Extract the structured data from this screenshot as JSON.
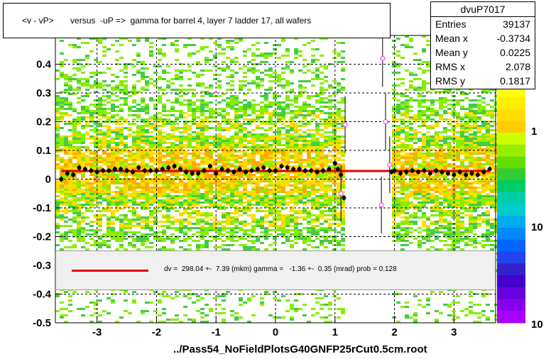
{
  "title": "<v - vP>       versus  -uP =>  gamma for barrel 4, layer 7 ladder 17, all wafers",
  "stats": {
    "name": "dvuP7017",
    "rows": [
      {
        "label": "Entries",
        "value": "39137"
      },
      {
        "label": "Mean x",
        "value": "-0.3734"
      },
      {
        "label": "Mean y",
        "value": "0.0225"
      },
      {
        "label": "RMS x",
        "value": "2.078"
      },
      {
        "label": "RMS y",
        "value": "0.1817"
      }
    ]
  },
  "fit_text": "dv =  298.04 +-  7.39 (mkm) gamma =   -1.36 +-  0.35 (mrad) prob = 0.128",
  "file_label": "../Pass54_NoFieldPlotsG40GNFP25rCut0.5cm.root",
  "colors": {
    "fit_line": "#e00000",
    "profile_points": "#000000",
    "open_markers": "#ff44ff",
    "heatmap_dense": "#ffdd00",
    "heatmap_mid": "#88ee00",
    "heatmap_sparse": "#44cc44"
  },
  "chart_data": {
    "type": "heatmap",
    "xlim": [
      -3.7,
      3.7
    ],
    "ylim": [
      -0.5,
      0.5
    ],
    "xticks": [
      "-3",
      "-2",
      "-1",
      "0",
      "1",
      "2",
      "3"
    ],
    "yticks": [
      "-0.5",
      "-0.4",
      "-0.3",
      "-0.2",
      "-0.1",
      "0",
      "0.1",
      "0.2",
      "0.3",
      "0.4"
    ],
    "colorbar_ticks": [
      "1",
      "10",
      "10"
    ],
    "grid": true,
    "empty_x_band": [
      1.2,
      1.95
    ],
    "fit_line": {
      "x": [
        -3.6,
        3.6
      ],
      "y": [
        0.0285,
        0.0285
      ]
    },
    "profile": {
      "x": [
        -3.6,
        -3.5,
        -3.4,
        -3.3,
        -3.2,
        -3.1,
        -3.0,
        -2.9,
        -2.8,
        -2.7,
        -2.6,
        -2.5,
        -2.4,
        -2.3,
        -2.2,
        -2.1,
        -2.0,
        -1.9,
        -1.8,
        -1.7,
        -1.6,
        -1.5,
        -1.4,
        -1.3,
        -1.2,
        -1.1,
        -1.0,
        -0.9,
        -0.8,
        -0.7,
        -0.6,
        -0.5,
        -0.4,
        -0.3,
        -0.2,
        -0.1,
        0.0,
        0.1,
        0.2,
        0.3,
        0.4,
        0.5,
        0.6,
        0.7,
        0.8,
        0.9,
        1.0,
        1.05,
        1.1,
        1.15,
        1.95,
        2.0,
        2.1,
        2.2,
        2.3,
        2.4,
        2.5,
        2.6,
        2.7,
        2.8,
        2.9,
        3.0,
        3.1,
        3.2,
        3.3,
        3.4,
        3.5,
        3.6
      ],
      "y": [
        0.0,
        0.02,
        0.015,
        0.04,
        0.035,
        0.03,
        0.025,
        0.03,
        0.03,
        0.035,
        0.035,
        0.03,
        0.025,
        0.04,
        0.03,
        0.03,
        0.03,
        0.035,
        0.04,
        0.045,
        0.035,
        0.025,
        0.02,
        0.02,
        0.03,
        0.045,
        0.02,
        0.035,
        0.03,
        0.025,
        0.035,
        0.025,
        0.03,
        0.035,
        0.04,
        0.03,
        0.03,
        0.045,
        0.04,
        0.035,
        0.035,
        0.03,
        0.03,
        0.025,
        0.03,
        0.035,
        0.055,
        0.035,
        0.015,
        -0.065,
        0.025,
        0.03,
        0.02,
        0.025,
        0.03,
        0.025,
        0.03,
        0.02,
        0.03,
        0.025,
        0.02,
        0.015,
        0.025,
        0.015,
        0.02,
        0.015,
        0.025,
        0.035
      ]
    },
    "outliers": {
      "x": [
        1.17,
        1.8,
        1.85,
        1.92,
        1.1,
        1.78
      ],
      "y": [
        0.19,
        0.42,
        0.2,
        0.05,
        -0.05,
        -0.09
      ]
    }
  }
}
